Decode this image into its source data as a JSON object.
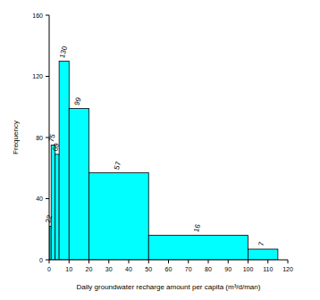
{
  "chart_data": {
    "type": "histogram",
    "x_label": "Daily groundwater recharge amount per capita (m³/d/man)",
    "y_label": "Frequency",
    "bins": [
      0,
      1,
      3,
      5,
      10,
      20,
      50,
      100,
      115
    ],
    "values": [
      22,
      75,
      69,
      130,
      99,
      57,
      16,
      7
    ],
    "color": "#00ffff",
    "data_labels": true,
    "xlim": [
      0,
      120
    ],
    "xticks": [
      0,
      10,
      20,
      30,
      40,
      50,
      60,
      70,
      80,
      90,
      100,
      110,
      120
    ],
    "ylim": [
      0,
      160
    ],
    "yticks": [
      0,
      40,
      80,
      120,
      160
    ]
  }
}
